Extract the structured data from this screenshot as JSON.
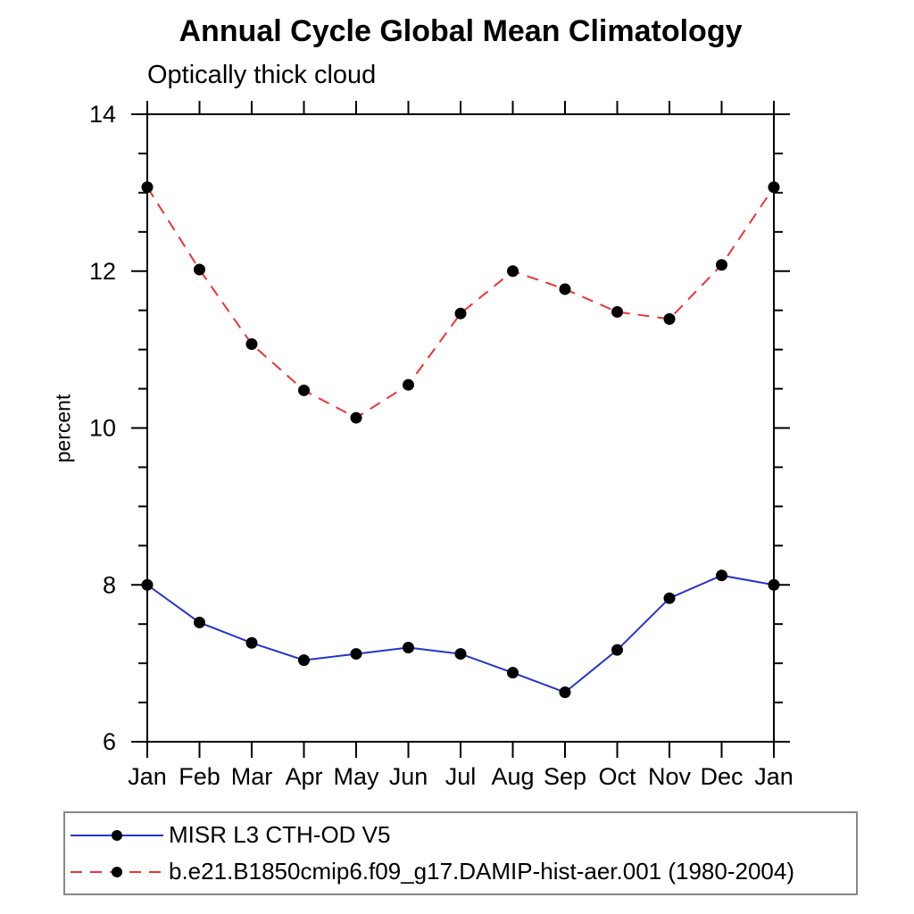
{
  "chart_data": {
    "type": "line",
    "title": "Annual Cycle Global Mean Climatology",
    "subtitle": "Optically thick cloud",
    "ylabel": "percent",
    "ylim": [
      6,
      14
    ],
    "y_major_ticks": [
      6,
      8,
      10,
      12,
      14
    ],
    "y_minor_step": 0.5,
    "grid": false,
    "legend_position": "bottom-left boxed",
    "categories": [
      "Jan",
      "Feb",
      "Mar",
      "Apr",
      "May",
      "Jun",
      "Jul",
      "Aug",
      "Sep",
      "Oct",
      "Nov",
      "Dec",
      "Jan"
    ],
    "series": [
      {
        "name": "MISR L3 CTH-OD V5",
        "color": "#2233cc",
        "line_style": "solid",
        "marker": "circle",
        "marker_color": "#000000",
        "values": [
          8.0,
          7.52,
          7.26,
          7.04,
          7.12,
          7.2,
          7.12,
          6.88,
          6.63,
          7.17,
          7.83,
          8.12,
          8.0
        ]
      },
      {
        "name": "b.e21.B1850cmip6.f09_g17.DAMIP-hist-aer.001 (1980-2004)",
        "color": "#ee3333",
        "line_style": "dashed",
        "marker": "circle",
        "marker_color": "#000000",
        "values": [
          13.07,
          12.02,
          11.07,
          10.48,
          10.13,
          10.55,
          11.46,
          12.0,
          11.77,
          11.48,
          11.39,
          12.08,
          13.07
        ]
      }
    ]
  }
}
